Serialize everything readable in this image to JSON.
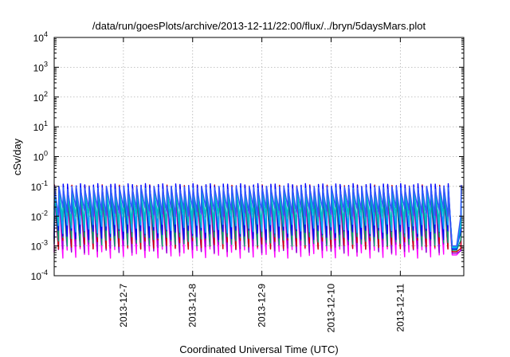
{
  "chart_data": {
    "type": "line",
    "title": "/data/run/goesPlots/archive/2013-12-11/22:00/flux/../bryn/5daysMars.plot",
    "xlabel": "Coordinated Universal Time (UTC)",
    "ylabel": "cSv/day",
    "yscale": "log",
    "ylim": [
      0.0001,
      10000
    ],
    "xlim": [
      "2013-12-06 00:00",
      "2013-12-11 22:00"
    ],
    "grid": true,
    "x_ticks": [
      "2013-12-7",
      "2013-12-8",
      "2013-12-9",
      "2013-12-10",
      "2013-12-11"
    ],
    "y_ticks": [
      {
        "value": 0.0001,
        "base": "10",
        "exp": "-4"
      },
      {
        "value": 0.001,
        "base": "10",
        "exp": "-3"
      },
      {
        "value": 0.01,
        "base": "10",
        "exp": "-2"
      },
      {
        "value": 0.1,
        "base": "10",
        "exp": "-1"
      },
      {
        "value": 1,
        "base": "10",
        "exp": "0"
      },
      {
        "value": 10,
        "base": "10",
        "exp": "1"
      },
      {
        "value": 100,
        "base": "10",
        "exp": "2"
      },
      {
        "value": 1000,
        "base": "10",
        "exp": "3"
      },
      {
        "value": 10000,
        "base": "10",
        "exp": "4"
      }
    ],
    "pattern": {
      "cycle_hours": 1.5,
      "peak_range": [
        0.045,
        0.11
      ],
      "trough_range": [
        0.0005,
        0.015
      ],
      "final_drop": {
        "from": "2013-12-11 17:30",
        "to": "2013-12-11 20:30",
        "value_range": [
          0.0005,
          0.001
        ]
      }
    },
    "series": [
      {
        "color": "#ff00ff",
        "peak": 0.045,
        "trough": 0.0006
      },
      {
        "color": "#9400d3",
        "peak": 0.055,
        "trough": 0.0009
      },
      {
        "color": "#cc0000",
        "peak": 0.1,
        "trough": 0.0012
      },
      {
        "color": "#009e73",
        "peak": 0.06,
        "trough": 0.0015
      },
      {
        "color": "#0000ff",
        "peak": 0.11,
        "trough": 0.0025
      },
      {
        "color": "#00aaff",
        "peak": 0.08,
        "trough": 0.004
      },
      {
        "color": "#00c0c0",
        "peak": 0.07,
        "trough": 0.008
      },
      {
        "color": "#3355ff",
        "peak": 0.09,
        "trough": 0.015
      }
    ]
  }
}
